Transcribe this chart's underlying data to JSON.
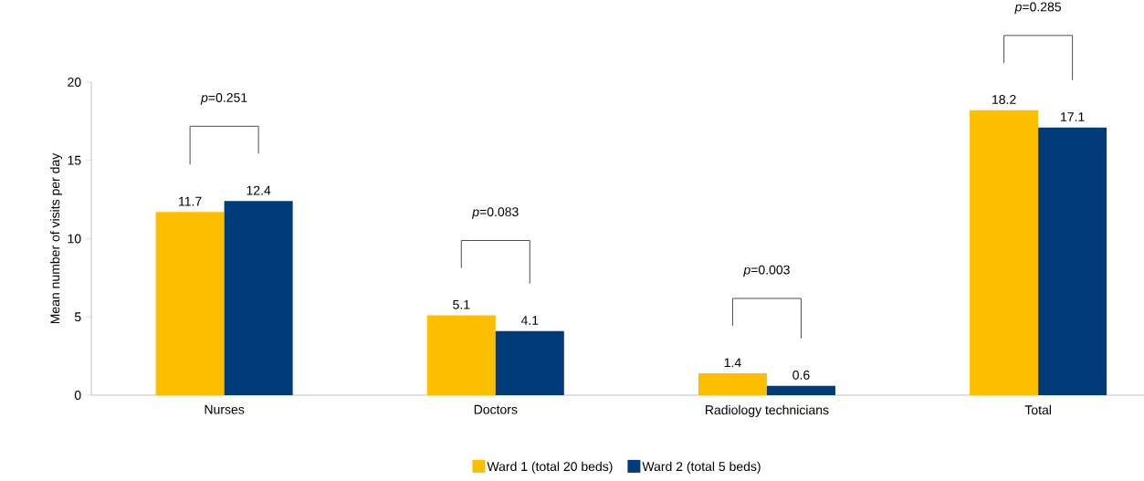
{
  "chart_data": {
    "type": "bar",
    "ylabel": "Mean number of visits per day",
    "categories": [
      "Nurses",
      "Doctors",
      "Radiology technicians",
      "Total"
    ],
    "series": [
      {
        "name": "Ward 1 (total 20 beds)",
        "color": "#fdbe00",
        "values": [
          11.7,
          5.1,
          1.4,
          18.2
        ]
      },
      {
        "name": "Ward 2 (total 5 beds)",
        "color": "#003b7a",
        "values": [
          12.4,
          4.1,
          0.6,
          17.1
        ]
      }
    ],
    "ylim": [
      0,
      20
    ],
    "yticks": [
      0,
      5,
      10,
      15,
      20
    ],
    "data_labels": true,
    "legend": "bottom",
    "annotations": [
      "*p*=0.251",
      "*p*=0.083",
      "*p*=0.003",
      "*p*=0.285"
    ]
  }
}
